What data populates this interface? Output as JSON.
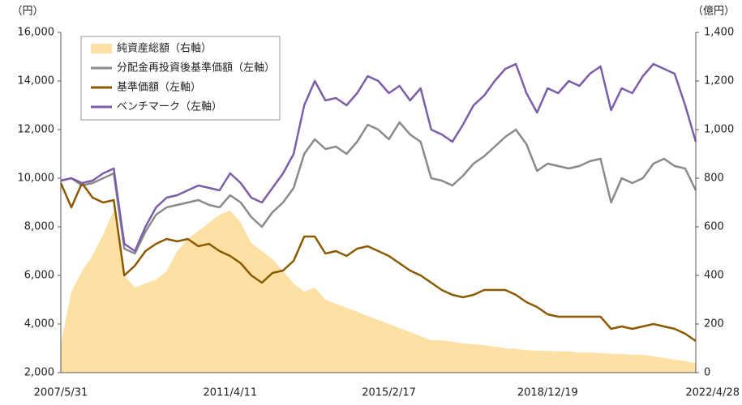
{
  "chart_data": {
    "type": "line",
    "y_unit": "（円）",
    "y2_unit": "（億円）",
    "categories": [
      "2007/5/31",
      null,
      null,
      null,
      null,
      null,
      null,
      null,
      null,
      null,
      null,
      null,
      null,
      null,
      null,
      null,
      "2011/4/11",
      null,
      null,
      null,
      null,
      null,
      null,
      null,
      null,
      null,
      null,
      null,
      null,
      null,
      null,
      "2015/2/17",
      null,
      null,
      null,
      null,
      null,
      null,
      null,
      null,
      null,
      null,
      null,
      null,
      null,
      null,
      "2018/12/19",
      null,
      null,
      null,
      null,
      null,
      null,
      null,
      null,
      null,
      null,
      null,
      null,
      null,
      "2022/4/28"
    ],
    "series": [
      {
        "name": "純資産総額（右軸）",
        "color": "#fde0a3",
        "axis": "y2",
        "kind": "area",
        "values": [
          117,
          333,
          417,
          483,
          567,
          667,
          400,
          350,
          367,
          383,
          417,
          500,
          550,
          583,
          617,
          650,
          667,
          617,
          533,
          500,
          467,
          417,
          367,
          333,
          350,
          300,
          283,
          267,
          250,
          233,
          217,
          200,
          183,
          167,
          150,
          133,
          133,
          127,
          120,
          117,
          113,
          107,
          100,
          97,
          93,
          90,
          90,
          87,
          87,
          83,
          83,
          80,
          77,
          77,
          73,
          73,
          67,
          60,
          53,
          47,
          40
        ]
      },
      {
        "name": "分配金再投資後基準価額（左軸）",
        "color": "#8a8a8a",
        "values": [
          9900,
          10000,
          9700,
          9800,
          10000,
          10200,
          7100,
          6900,
          7800,
          8500,
          8800,
          8900,
          9000,
          9100,
          8900,
          8800,
          9300,
          9000,
          8400,
          8000,
          8600,
          9000,
          9600,
          11000,
          11600,
          11200,
          11300,
          11000,
          11500,
          12200,
          12000,
          11600,
          12300,
          11800,
          11500,
          10000,
          9900,
          9700,
          10100,
          10600,
          10900,
          11300,
          11700,
          12000,
          11400,
          10300,
          10600,
          10500,
          10400,
          10500,
          10700,
          10800,
          9000,
          10000,
          9800,
          10000,
          10600,
          10800,
          10500,
          10400,
          9500
        ]
      },
      {
        "name": "基準価額（左軸）",
        "color": "#8b5a00",
        "values": [
          9800,
          8800,
          9800,
          9200,
          9000,
          9100,
          6000,
          6400,
          7000,
          7300,
          7500,
          7400,
          7500,
          7200,
          7300,
          7000,
          6800,
          6500,
          6000,
          5700,
          6100,
          6200,
          6600,
          7600,
          7600,
          6900,
          7000,
          6800,
          7100,
          7200,
          7000,
          6800,
          6500,
          6200,
          6000,
          5700,
          5400,
          5200,
          5100,
          5200,
          5400,
          5400,
          5400,
          5200,
          4900,
          4700,
          4400,
          4300,
          4300,
          4300,
          4300,
          4300,
          3800,
          3900,
          3800,
          3900,
          4000,
          3900,
          3800,
          3600,
          3300
        ]
      },
      {
        "name": "ベンチマーク（左軸）",
        "color": "#7b5ea7",
        "values": [
          9900,
          10000,
          9800,
          9900,
          10200,
          10400,
          7300,
          7000,
          8000,
          8800,
          9200,
          9300,
          9500,
          9700,
          9600,
          9500,
          10200,
          9800,
          9200,
          9000,
          9600,
          10200,
          11000,
          13000,
          14000,
          13200,
          13300,
          13000,
          13500,
          14200,
          14000,
          13500,
          13800,
          13200,
          13700,
          12000,
          11800,
          11500,
          12200,
          13000,
          13400,
          14000,
          14500,
          14700,
          13500,
          12700,
          13700,
          13500,
          14000,
          13800,
          14300,
          14600,
          12800,
          13700,
          13500,
          14200,
          14700,
          14500,
          14300,
          13000,
          11500
        ]
      }
    ],
    "ylim": [
      2000,
      16000
    ],
    "yticks": [
      {
        "value": 2000,
        "label": "2,000"
      },
      {
        "value": 4000,
        "label": "4,000"
      },
      {
        "value": 6000,
        "label": "6,000"
      },
      {
        "value": 8000,
        "label": "8,000"
      },
      {
        "value": 10000,
        "label": "10,000"
      },
      {
        "value": 12000,
        "label": "12,000"
      },
      {
        "value": 14000,
        "label": "14,000"
      },
      {
        "value": 16000,
        "label": "16,000"
      }
    ],
    "y2lim": [
      0,
      1400
    ],
    "y2ticks": [
      0,
      200,
      400,
      600,
      800,
      {
        "value": 1000,
        "label": "1,000"
      },
      {
        "value": 1200,
        "label": "1,200"
      },
      {
        "value": 1400,
        "label": "1,400"
      }
    ],
    "legend": "upper left"
  }
}
